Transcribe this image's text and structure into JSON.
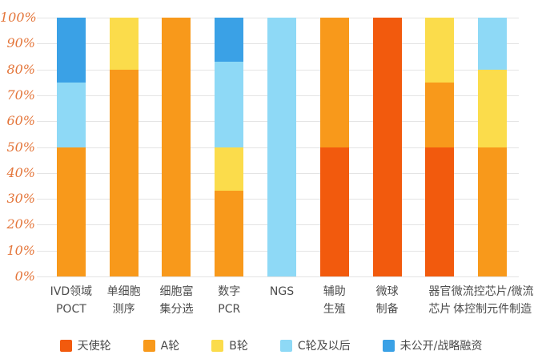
{
  "page": {
    "background": "#ffffff"
  },
  "chart_data": {
    "type": "bar",
    "stacked": true,
    "percent": true,
    "title": "",
    "xlabel": "",
    "ylabel": "",
    "ylim": [
      0,
      100
    ],
    "grid": true,
    "legend_position": "bottom",
    "y_ticks": [
      "100%",
      "90%",
      "80%",
      "70%",
      "60%",
      "50%",
      "40%",
      "30%",
      "20%",
      "10%",
      "0%"
    ],
    "y_tick_color": "#e4763b",
    "categories": [
      {
        "line1": "IVD领域",
        "line2": "POCT"
      },
      {
        "line1": "单细胞",
        "line2": "测序"
      },
      {
        "line1": "细胞富",
        "line2": "集分选"
      },
      {
        "line1": "数字",
        "line2": "PCR"
      },
      {
        "line1": "NGS",
        "line2": ""
      },
      {
        "line1": "辅助",
        "line2": "生殖"
      },
      {
        "line1": "微球",
        "line2": "制备"
      },
      {
        "line1": "器官",
        "line2": "芯片"
      },
      {
        "line1": "微流控芯片/微流",
        "line2": "体控制元件制造"
      }
    ],
    "series": [
      {
        "name": "天使轮",
        "color": "#f25a0d",
        "values": [
          0,
          0,
          0,
          0,
          0,
          50,
          100,
          50,
          0
        ]
      },
      {
        "name": "A轮",
        "color": "#f8991b",
        "values": [
          50,
          80,
          100,
          33,
          0,
          50,
          0,
          25,
          50
        ]
      },
      {
        "name": "B轮",
        "color": "#fbdc4b",
        "values": [
          0,
          20,
          0,
          17,
          0,
          0,
          0,
          25,
          30
        ]
      },
      {
        "name": "C轮及以后",
        "color": "#8ed9f6",
        "values": [
          25,
          0,
          0,
          33,
          100,
          0,
          0,
          0,
          20
        ]
      },
      {
        "name": "未公开/战略融资",
        "color": "#3aa1e6",
        "values": [
          25,
          0,
          0,
          17,
          0,
          0,
          0,
          0,
          0
        ]
      }
    ]
  }
}
